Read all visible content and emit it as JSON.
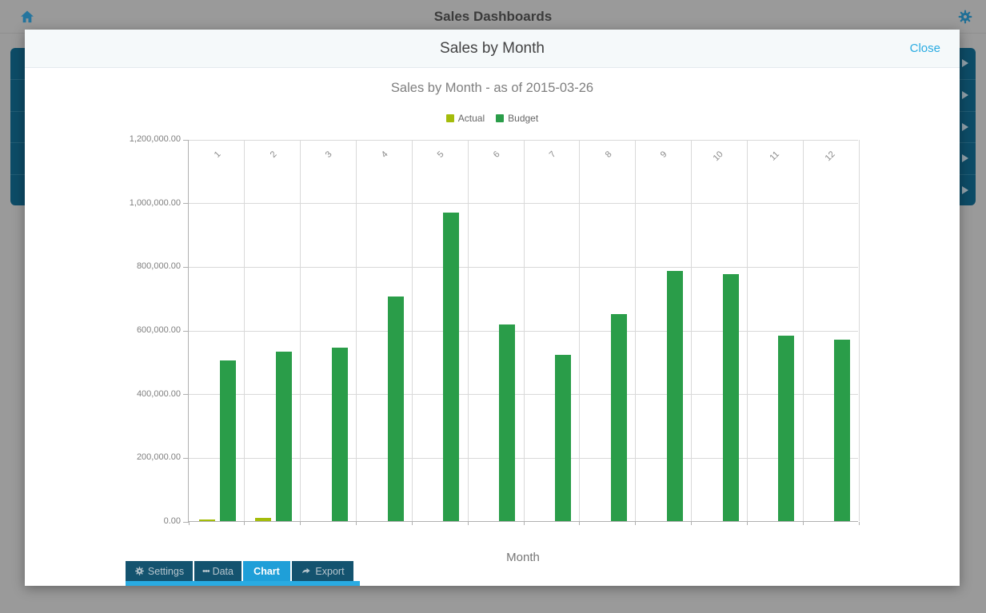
{
  "app": {
    "title": "Sales Dashboards",
    "home_icon": "home-icon",
    "settings_icon": "gear-icon"
  },
  "background_list": {
    "visible_rows": 5,
    "chevron_icon": "chevron-right-icon"
  },
  "modal": {
    "title": "Sales by Month",
    "close_label": "Close"
  },
  "chart_data": {
    "type": "bar",
    "title": "Sales by Month - as of 2015-03-26",
    "categories": [
      "1",
      "2",
      "3",
      "4",
      "5",
      "6",
      "7",
      "8",
      "9",
      "10",
      "11",
      "12"
    ],
    "series": [
      {
        "name": "Actual",
        "color": "#a4bc0b",
        "values": [
          6000,
          11000,
          0,
          0,
          0,
          0,
          0,
          0,
          0,
          0,
          0,
          0
        ]
      },
      {
        "name": "Budget",
        "color": "#2a9d49",
        "values": [
          505000,
          532000,
          546000,
          706000,
          970000,
          618000,
          523000,
          650000,
          786000,
          776000,
          582000,
          570000
        ]
      }
    ],
    "xlabel": "Month",
    "ylabel": "",
    "ylim": [
      0,
      1200000
    ],
    "ytick_interval": 200000,
    "ytick_labels": [
      "0.00",
      "200,000.00",
      "400,000.00",
      "600,000.00",
      "800,000.00",
      "1,000,000.00",
      "1,200,000.00"
    ],
    "legend_position": "top",
    "grid": true
  },
  "tabs": [
    {
      "label": "Settings",
      "icon": "gear",
      "active": false
    },
    {
      "label": "Data",
      "icon": "dots",
      "active": false
    },
    {
      "label": "Chart",
      "icon": null,
      "active": true
    },
    {
      "label": "Export",
      "icon": "share",
      "active": false
    }
  ],
  "colors": {
    "accent_blue": "#29abe2",
    "active_tab": "#1f9fd8",
    "inactive_tab": "#14536f",
    "panel_teal": "#0d4c67",
    "actual": "#a4bc0b",
    "budget": "#2a9d49"
  }
}
